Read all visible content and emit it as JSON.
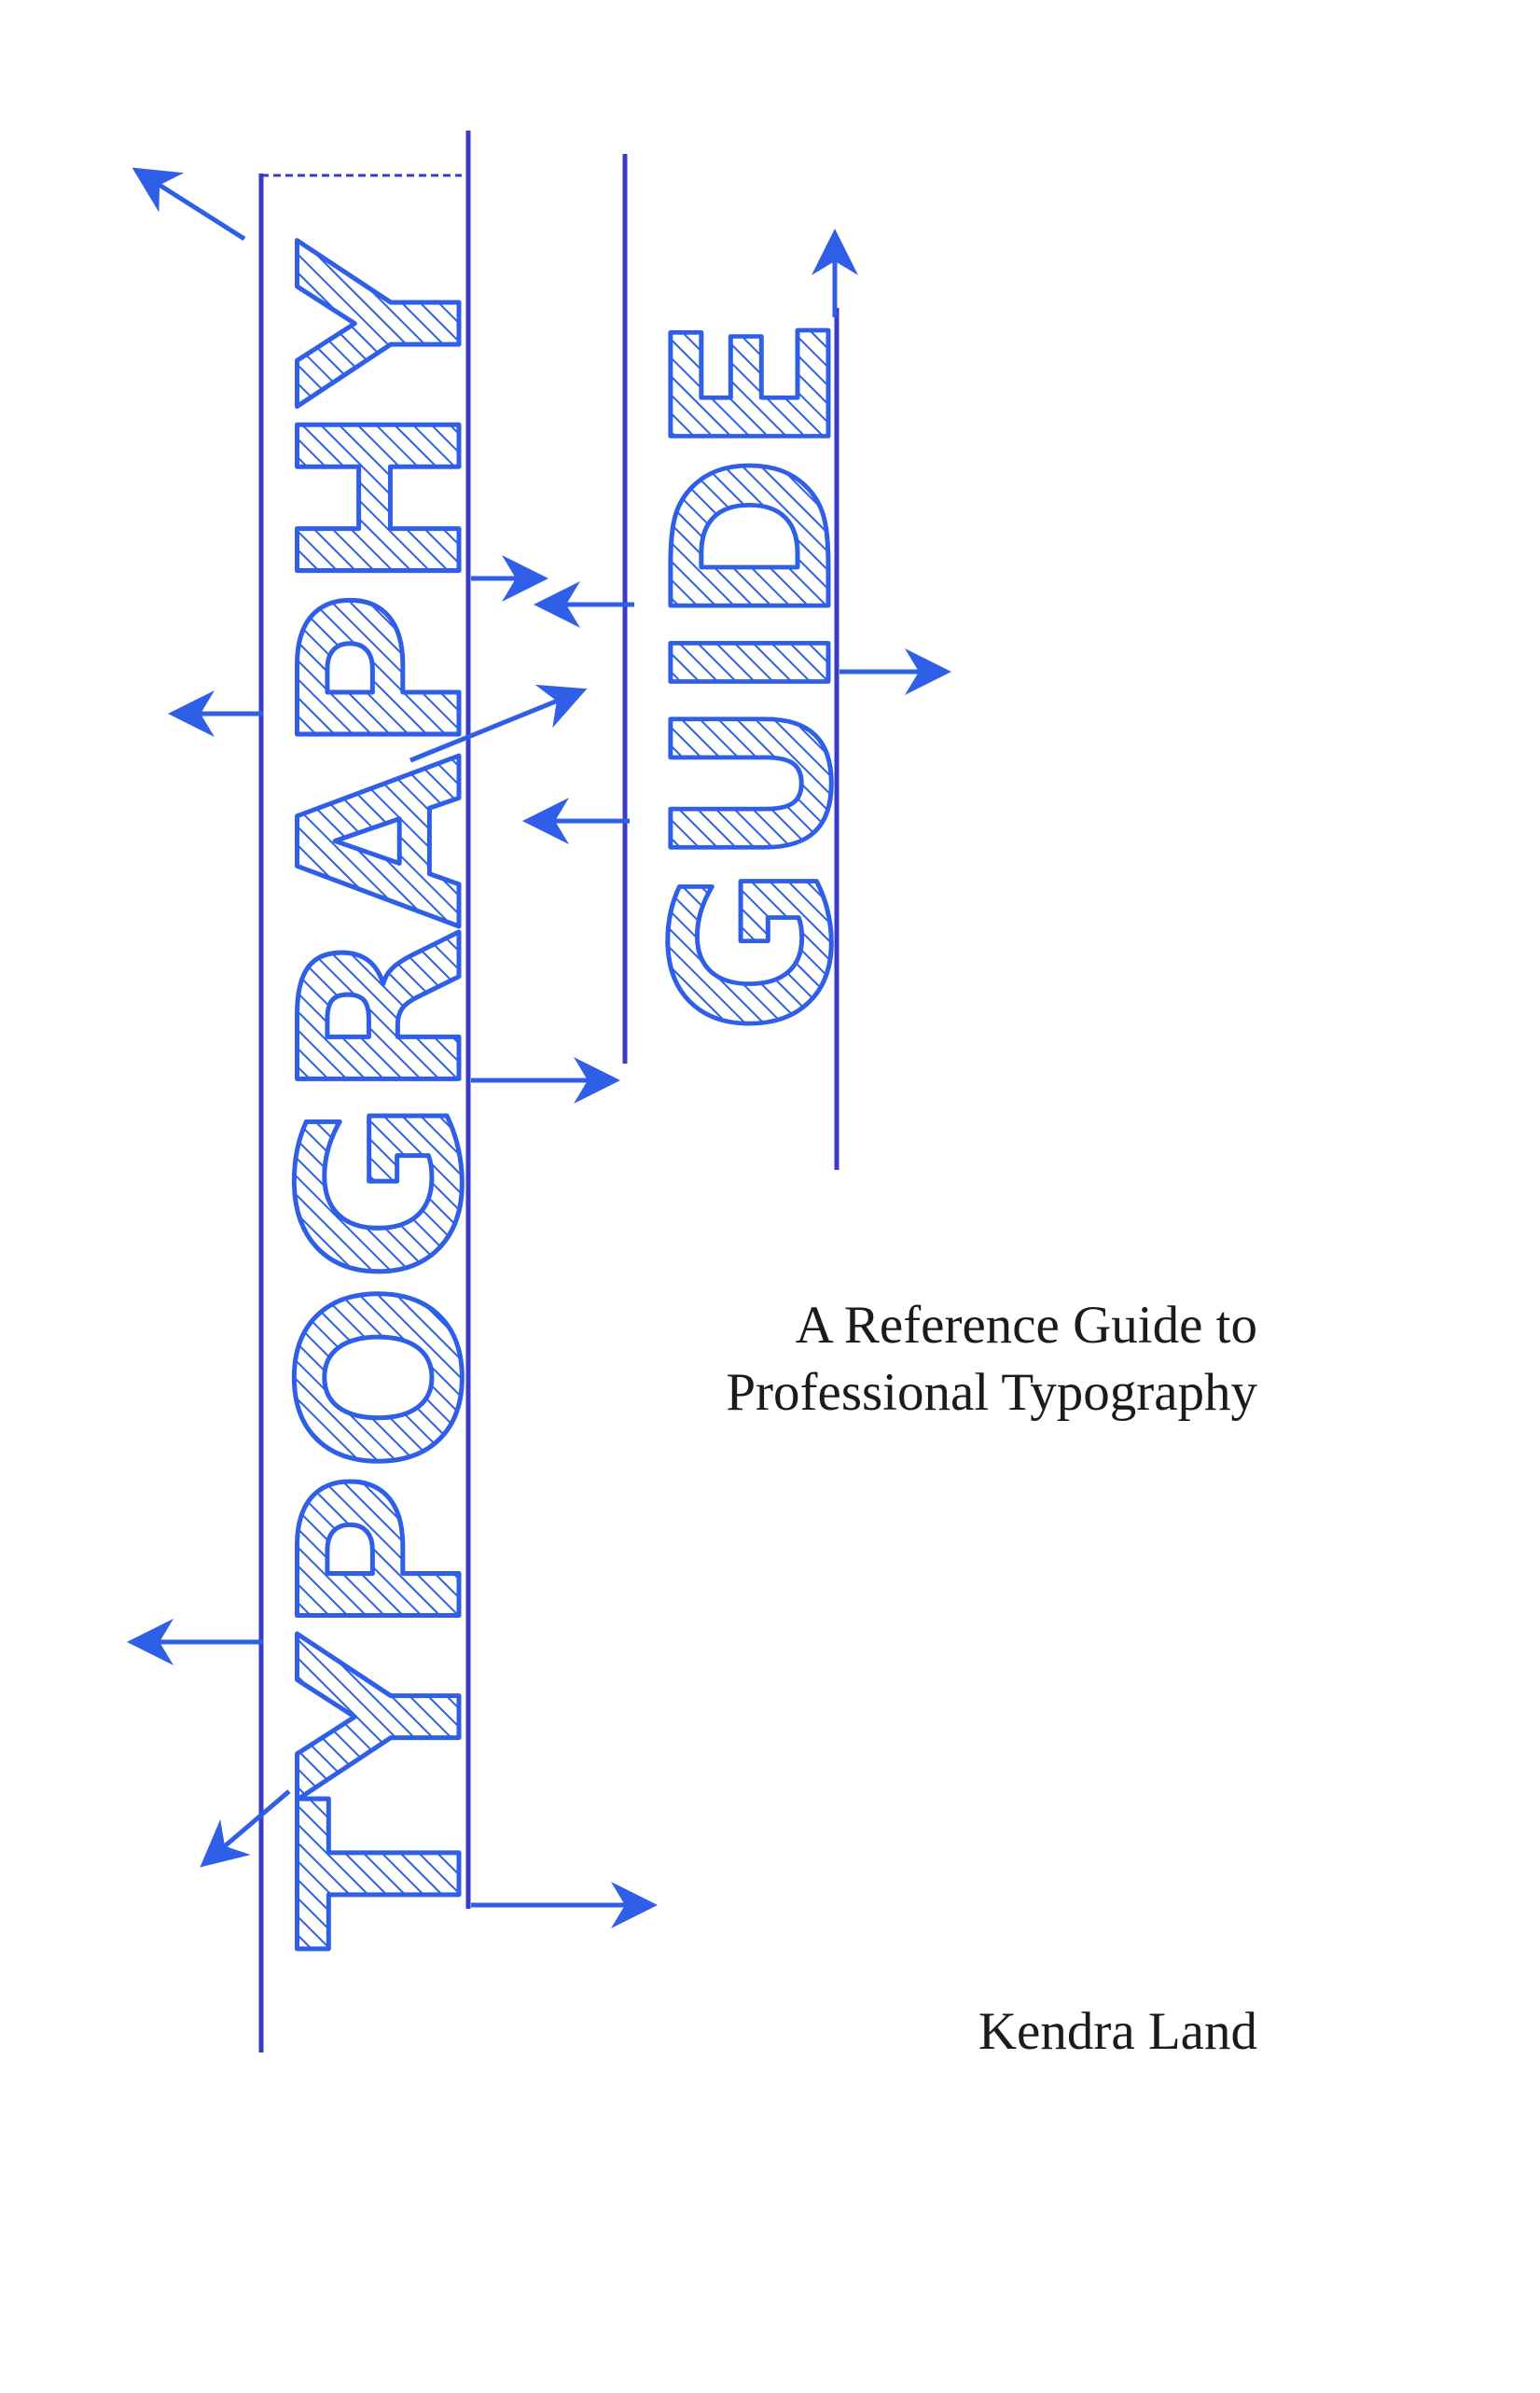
{
  "cover": {
    "title_word_1": "TYPOGRAPHY",
    "title_word_2": "GUIDE",
    "subtitle_line_1": "A Reference Guide to",
    "subtitle_line_2": "Professional Typography",
    "author": "Kendra Land"
  },
  "colors": {
    "accent_blue": "#2f5fe6",
    "guide_blue": "#3a3cc8",
    "text_black": "#1b1b1b",
    "background": "#ffffff"
  },
  "icons": [
    "arrow-icon",
    "hatch-pattern"
  ]
}
